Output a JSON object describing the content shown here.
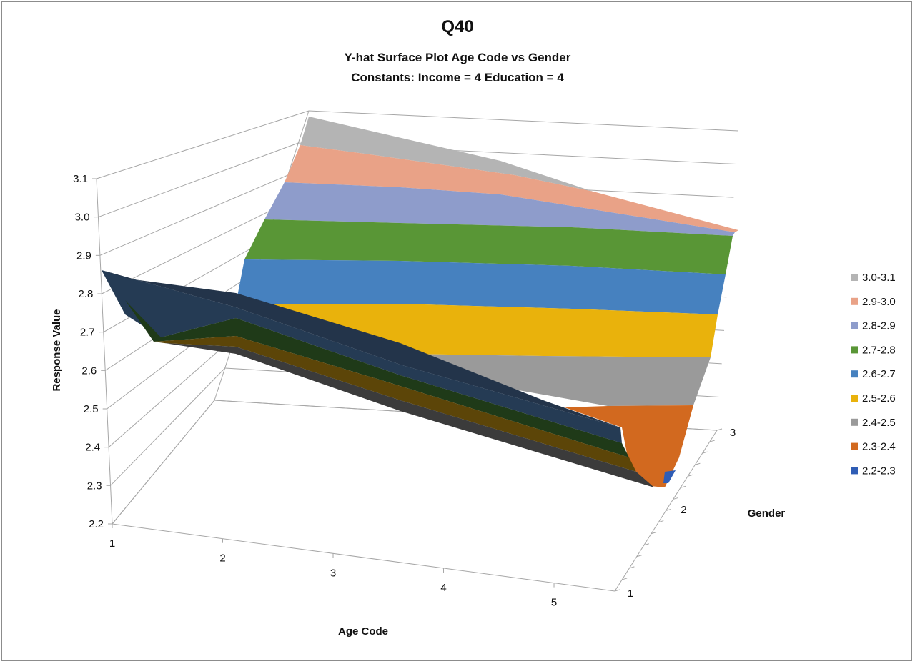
{
  "chart_data": {
    "type": "surface",
    "title": "Q40",
    "subtitle_lines": [
      "Y-hat Surface Plot  Age Code vs Gender",
      "Constants:   Income = 4  Education = 4"
    ],
    "xlabel": "Age Code",
    "ylabel": "Gender",
    "zlabel": "Response Value",
    "x_ticks": [
      "1",
      "2",
      "3",
      "4",
      "5"
    ],
    "y_ticks": [
      "1",
      "2",
      "3"
    ],
    "z_ticks": [
      "2.2",
      "2.3",
      "2.4",
      "2.5",
      "2.6",
      "2.7",
      "2.8",
      "2.9",
      "3.0",
      "3.1"
    ],
    "zlim": [
      2.2,
      3.1
    ],
    "grid": true,
    "legend_position": "right",
    "bands": [
      {
        "label": "3.0-3.1",
        "color": "#b4b4b4"
      },
      {
        "label": "2.9-3.0",
        "color": "#e9a287"
      },
      {
        "label": "2.8-2.9",
        "color": "#8e9ccb"
      },
      {
        "label": "2.7-2.8",
        "color": "#599636"
      },
      {
        "label": "2.6-2.7",
        "color": "#4681bf"
      },
      {
        "label": "2.5-2.6",
        "color": "#e9b20c"
      },
      {
        "label": "2.4-2.5",
        "color": "#9a9a9a"
      },
      {
        "label": "2.3-2.4",
        "color": "#d2691f"
      },
      {
        "label": "2.2-2.3",
        "color": "#2f5db5"
      }
    ]
  }
}
